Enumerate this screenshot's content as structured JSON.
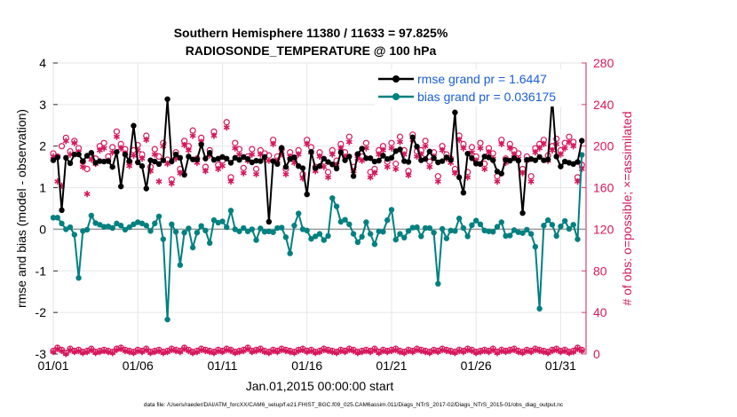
{
  "chart_data": {
    "type": "line",
    "title_line1": "Southern Hemisphere 11380 / 11633 = 97.825%",
    "title_line2": "RADIOSONDE_TEMPERATURE @ 100 hPa",
    "xlabel": "Jan.01,2015 00:00:00 start",
    "ylabel_left": "rmse and bias (model - observation)",
    "ylabel_right": "# of obs: o=possible; ×=assimilated",
    "footer": "data file: /Users/raeder/DAI/ATM_forcXX/CAM6_setup/f.e21.FHIST_BGC.f09_025.CAM6assim.011/Diags_NTrS_2017-02/Diags_NTrS_2015-01/obs_diag_output.nc",
    "xlim": [
      0,
      31.5
    ],
    "ylim_left": [
      -3,
      4
    ],
    "ylim_right": [
      0,
      280
    ],
    "x_ticks": [
      0,
      5,
      10,
      15,
      20,
      25,
      30
    ],
    "x_tick_labels": [
      "01/01",
      "01/06",
      "01/11",
      "01/16",
      "01/21",
      "01/26",
      "01/31"
    ],
    "y_left_ticks": [
      -3,
      -2,
      -1,
      0,
      1,
      2,
      3,
      4
    ],
    "y_right_ticks": [
      0,
      40,
      80,
      120,
      160,
      200,
      240,
      280
    ],
    "legend": [
      {
        "label": "rmse grand pr = 1.6447",
        "color": "#000000"
      },
      {
        "label": "bias grand pr = 0.036175",
        "color": "#008080"
      }
    ],
    "colors": {
      "rmse": "#000000",
      "bias": "#008080",
      "obs": "#d6185c",
      "legend_text": "#1a5fd6",
      "axis_right": "#d6185c"
    },
    "x": [
      0.0,
      0.25,
      0.5,
      0.75,
      1.0,
      1.25,
      1.5,
      1.75,
      2.0,
      2.25,
      2.5,
      2.75,
      3.0,
      3.25,
      3.5,
      3.75,
      4.0,
      4.25,
      4.5,
      4.75,
      5.0,
      5.25,
      5.5,
      5.75,
      6.0,
      6.25,
      6.5,
      6.75,
      7.0,
      7.25,
      7.5,
      7.75,
      8.0,
      8.25,
      8.5,
      8.75,
      9.0,
      9.25,
      9.5,
      9.75,
      10.0,
      10.25,
      10.5,
      10.75,
      11.0,
      11.25,
      11.5,
      11.75,
      12.0,
      12.25,
      12.5,
      12.75,
      13.0,
      13.25,
      13.5,
      13.75,
      14.0,
      14.25,
      14.5,
      14.75,
      15.0,
      15.25,
      15.5,
      15.75,
      16.0,
      16.25,
      16.5,
      16.75,
      17.0,
      17.25,
      17.5,
      17.75,
      18.0,
      18.25,
      18.5,
      18.75,
      19.0,
      19.25,
      19.5,
      19.75,
      20.0,
      20.25,
      20.5,
      20.75,
      21.0,
      21.25,
      21.5,
      21.75,
      22.0,
      22.25,
      22.5,
      22.75,
      23.0,
      23.25,
      23.5,
      23.75,
      24.0,
      24.25,
      24.5,
      24.75,
      25.0,
      25.25,
      25.5,
      25.75,
      26.0,
      26.25,
      26.5,
      26.75,
      27.0,
      27.25,
      27.5,
      27.75,
      28.0,
      28.25,
      28.5,
      28.75,
      29.0,
      29.25,
      29.5,
      29.75,
      30.0,
      30.25,
      30.5,
      30.75,
      31.0,
      31.25
    ],
    "rmse": [
      1.66,
      1.73,
      0.46,
      1.72,
      1.59,
      1.8,
      1.8,
      1.64,
      1.77,
      1.84,
      1.6,
      1.64,
      1.63,
      1.64,
      1.5,
      1.86,
      1.03,
      1.8,
      1.64,
      2.49,
      1.61,
      1.52,
      0.98,
      1.66,
      1.63,
      1.57,
      1.66,
      3.13,
      1.63,
      1.8,
      1.72,
      1.31,
      1.75,
      1.68,
      1.68,
      2.04,
      1.7,
      1.84,
      1.67,
      1.7,
      1.74,
      1.7,
      1.6,
      1.72,
      1.67,
      1.74,
      1.69,
      1.61,
      1.65,
      1.64,
      1.74,
      0.18,
      1.64,
      1.57,
      1.96,
      1.5,
      1.69,
      1.73,
      1.52,
      1.47,
      0.84,
      1.86,
      1.47,
      1.52,
      1.7,
      1.62,
      1.56,
      1.46,
      1.85,
      1.66,
      1.75,
      1.28,
      1.81,
      1.94,
      1.71,
      1.71,
      1.63,
      1.65,
      1.77,
      1.69,
      1.72,
      1.88,
      1.92,
      1.64,
      1.62,
      2.21,
      1.99,
      1.66,
      1.69,
      1.87,
      1.71,
      1.61,
      1.64,
      1.73,
      1.67,
      2.81,
      1.25,
      0.88,
      1.82,
      1.71,
      1.58,
      1.57,
      1.75,
      1.73,
      1.66,
      1.39,
      1.34,
      1.67,
      1.65,
      1.71,
      1.65,
      0.39,
      1.67,
      1.69,
      1.66,
      1.74,
      1.66,
      1.68,
      3.15,
      1.75,
      1.51,
      1.63,
      1.6,
      1.57,
      1.62,
      2.13
    ],
    "bias": [
      0.28,
      0.28,
      0.14,
      -0.0,
      0.05,
      -0.13,
      -1.17,
      -0.04,
      -0.01,
      0.33,
      0.15,
      0.11,
      0.06,
      0.07,
      0.03,
      0.14,
      0.09,
      -0.01,
      0.05,
      0.12,
      0.17,
      0.14,
      0.09,
      -0.04,
      0.14,
      0.31,
      -0.24,
      -2.17,
      0.12,
      -0.06,
      -0.86,
      -0.08,
      0.02,
      -0.44,
      -0.08,
      0.08,
      -0.03,
      -0.33,
      0.22,
      0.16,
      0.19,
      0.05,
      0.45,
      -0.0,
      -0.05,
      0.03,
      -0.05,
      0.0,
      -0.26,
      0.02,
      -0.06,
      -0.05,
      -0.07,
      0.03,
      0.04,
      -0.19,
      -0.58,
      0.09,
      0.38,
      0.0,
      -0.03,
      -0.23,
      -0.17,
      -0.11,
      -0.26,
      -0.16,
      0.75,
      0.55,
      0.18,
      0.23,
      0.12,
      -0.11,
      -0.31,
      -0.18,
      0.17,
      -0.11,
      -0.36,
      -0.05,
      -0.06,
      0.22,
      0.47,
      -0.25,
      -0.11,
      -0.2,
      -0.04,
      0.04,
      0.05,
      -0.17,
      0.03,
      0.03,
      -0.08,
      -1.31,
      0.01,
      -0.22,
      -0.03,
      -0.04,
      0.26,
      0.03,
      -0.17,
      0.1,
      0.21,
      0.12,
      -0.03,
      -0.05,
      -0.06,
      0.06,
      0.17,
      -0.16,
      -0.15,
      -0.02,
      -0.07,
      -0.09,
      -0.01,
      -0.11,
      -0.42,
      -1.91,
      0.09,
      0.22,
      0.11,
      -0.16,
      0.07,
      0.2,
      0.01,
      0.11,
      -0.24,
      1.79
    ],
    "obs_possible": [
      3,
      6,
      4,
      1,
      5,
      3,
      4,
      2,
      3,
      5,
      2,
      3,
      4,
      3,
      2,
      5,
      6,
      4,
      3,
      2,
      4,
      3,
      5,
      2,
      3,
      4,
      2,
      3,
      5,
      4,
      3,
      6,
      4,
      2,
      3,
      5,
      4,
      3,
      2,
      4,
      3,
      5,
      4,
      2,
      3,
      4,
      6,
      3,
      4,
      5,
      3,
      2,
      4,
      3,
      5,
      4,
      3,
      2,
      4,
      5,
      3,
      4,
      2,
      3,
      5,
      4,
      3,
      2,
      4,
      3,
      5,
      4,
      2,
      3,
      4,
      3,
      5,
      2,
      4,
      3,
      4,
      5,
      3,
      2,
      4,
      3,
      5,
      4,
      3,
      2,
      4,
      3,
      5,
      4,
      3,
      2,
      4,
      3,
      5,
      4,
      2,
      3,
      4,
      3,
      5,
      2,
      4,
      3,
      4,
      5,
      3,
      2,
      4,
      3,
      5,
      4,
      3,
      2,
      4,
      5,
      3,
      4,
      2,
      3,
      6,
      4
    ],
    "obs_assimilated": [
      2,
      5,
      3,
      0,
      4,
      2,
      3,
      1,
      2,
      4,
      1,
      2,
      3,
      2,
      1,
      4,
      5,
      3,
      2,
      1,
      3,
      2,
      4,
      1,
      2,
      3,
      1,
      2,
      4,
      3,
      2,
      5,
      3,
      1,
      2,
      4,
      3,
      2,
      1,
      3,
      2,
      4,
      3,
      1,
      2,
      3,
      5,
      2,
      3,
      4,
      2,
      1,
      3,
      2,
      4,
      3,
      2,
      1,
      3,
      4,
      2,
      3,
      1,
      2,
      4,
      3,
      2,
      1,
      3,
      2,
      4,
      3,
      1,
      2,
      3,
      2,
      4,
      1,
      3,
      2,
      3,
      4,
      2,
      1,
      3,
      2,
      4,
      3,
      2,
      1,
      3,
      2,
      4,
      3,
      2,
      1,
      3,
      2,
      4,
      3,
      1,
      2,
      3,
      2,
      4,
      1,
      3,
      2,
      3,
      4,
      2,
      1,
      3,
      2,
      4,
      3,
      2,
      1,
      3,
      4,
      2,
      3,
      1,
      2,
      5,
      3
    ],
    "obs_possible_upper": [
      193,
      190,
      200,
      208,
      195,
      205,
      198,
      185,
      178,
      191,
      188,
      200,
      203,
      190,
      199,
      214,
      202,
      197,
      185,
      196,
      201,
      192,
      210,
      180,
      197,
      190,
      203,
      187,
      168,
      194,
      178,
      205,
      200,
      215,
      188,
      208,
      180,
      196,
      214,
      182,
      186,
      223,
      170,
      203,
      197,
      179,
      190,
      197,
      178,
      196,
      193,
      191,
      206,
      190,
      197,
      178,
      194,
      188,
      196,
      173,
      206,
      199,
      180,
      194,
      185,
      175,
      196,
      186,
      202,
      194,
      209,
      180,
      192,
      190,
      203,
      175,
      178,
      196,
      200,
      185,
      203,
      183,
      209,
      196,
      176,
      211,
      195,
      196,
      205,
      185,
      194,
      171,
      200,
      192,
      188,
      178,
      210,
      202,
      175,
      199,
      190,
      203,
      183,
      198,
      193,
      171,
      206,
      188,
      202,
      196,
      193,
      178,
      190,
      171,
      198,
      202,
      206,
      191,
      200,
      207,
      196,
      203,
      209,
      204,
      170,
      182
    ],
    "obs_assimilated_upper": [
      190,
      166,
      162,
      205,
      192,
      203,
      194,
      180,
      154,
      187,
      183,
      196,
      198,
      186,
      194,
      209,
      198,
      193,
      181,
      191,
      196,
      188,
      206,
      176,
      192,
      166,
      200,
      183,
      164,
      188,
      174,
      201,
      196,
      210,
      184,
      204,
      176,
      191,
      210,
      178,
      181,
      218,
      166,
      198,
      192,
      174,
      186,
      192,
      173,
      192,
      188,
      186,
      202,
      186,
      192,
      173,
      190,
      184,
      192,
      169,
      202,
      194,
      176,
      190,
      180,
      170,
      192,
      182,
      198,
      190,
      204,
      176,
      188,
      186,
      198,
      170,
      174,
      192,
      196,
      180,
      198,
      178,
      204,
      192,
      172,
      206,
      190,
      192,
      200,
      180,
      190,
      166,
      196,
      188,
      184,
      174,
      206,
      198,
      170,
      194,
      186,
      198,
      178,
      194,
      188,
      166,
      202,
      184,
      198,
      192,
      188,
      174,
      186,
      166,
      194,
      198,
      202,
      186,
      196,
      202,
      192,
      198,
      204,
      200,
      166,
      178
    ]
  }
}
